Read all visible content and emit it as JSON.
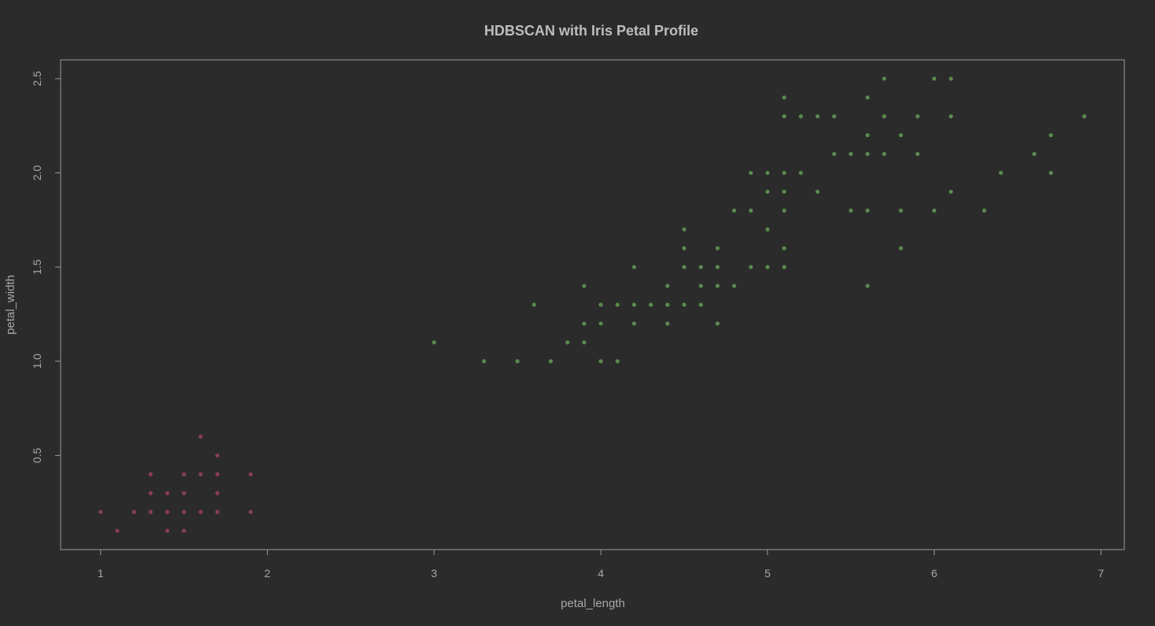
{
  "chart_data": {
    "type": "scatter",
    "title": "HDBSCAN with Iris Petal Profile",
    "xlabel": "petal_length",
    "ylabel": "petal_width",
    "xlim": [
      0.76,
      7.14
    ],
    "ylim": [
      0.0,
      2.6
    ],
    "xticks": [
      "1",
      "2",
      "3",
      "4",
      "5",
      "6",
      "7"
    ],
    "yticks": [
      "0.5",
      "1.0",
      "1.5",
      "2.0",
      "2.5"
    ],
    "grid": false,
    "legend": "none",
    "series": [
      {
        "color": "#8b3d55",
        "points": [
          [
            1.0,
            0.2
          ],
          [
            1.1,
            0.1
          ],
          [
            1.2,
            0.2
          ],
          [
            1.3,
            0.2
          ],
          [
            1.3,
            0.3
          ],
          [
            1.3,
            0.4
          ],
          [
            1.4,
            0.1
          ],
          [
            1.4,
            0.2
          ],
          [
            1.4,
            0.3
          ],
          [
            1.5,
            0.1
          ],
          [
            1.5,
            0.2
          ],
          [
            1.5,
            0.3
          ],
          [
            1.5,
            0.4
          ],
          [
            1.6,
            0.2
          ],
          [
            1.6,
            0.4
          ],
          [
            1.6,
            0.6
          ],
          [
            1.7,
            0.2
          ],
          [
            1.7,
            0.3
          ],
          [
            1.7,
            0.4
          ],
          [
            1.7,
            0.5
          ],
          [
            1.9,
            0.2
          ],
          [
            1.9,
            0.4
          ]
        ]
      },
      {
        "color": "#5a8a4f",
        "points": [
          [
            3.0,
            1.1
          ],
          [
            3.3,
            1.0
          ],
          [
            3.5,
            1.0
          ],
          [
            3.6,
            1.3
          ],
          [
            3.7,
            1.0
          ],
          [
            3.8,
            1.1
          ],
          [
            3.9,
            1.1
          ],
          [
            3.9,
            1.2
          ],
          [
            3.9,
            1.4
          ],
          [
            4.0,
            1.0
          ],
          [
            4.0,
            1.2
          ],
          [
            4.0,
            1.3
          ],
          [
            4.1,
            1.0
          ],
          [
            4.1,
            1.3
          ],
          [
            4.2,
            1.2
          ],
          [
            4.2,
            1.3
          ],
          [
            4.2,
            1.5
          ],
          [
            4.3,
            1.3
          ],
          [
            4.4,
            1.2
          ],
          [
            4.4,
            1.3
          ],
          [
            4.4,
            1.4
          ],
          [
            4.5,
            1.3
          ],
          [
            4.5,
            1.5
          ],
          [
            4.5,
            1.6
          ],
          [
            4.5,
            1.7
          ],
          [
            4.6,
            1.3
          ],
          [
            4.6,
            1.4
          ],
          [
            4.6,
            1.5
          ],
          [
            4.7,
            1.2
          ],
          [
            4.7,
            1.4
          ],
          [
            4.7,
            1.5
          ],
          [
            4.7,
            1.6
          ],
          [
            4.8,
            1.4
          ],
          [
            4.8,
            1.8
          ],
          [
            4.9,
            1.5
          ],
          [
            4.9,
            1.8
          ],
          [
            4.9,
            2.0
          ],
          [
            5.0,
            1.5
          ],
          [
            5.0,
            1.7
          ],
          [
            5.0,
            1.9
          ],
          [
            5.0,
            2.0
          ],
          [
            5.1,
            1.5
          ],
          [
            5.1,
            1.6
          ],
          [
            5.1,
            1.8
          ],
          [
            5.1,
            1.9
          ],
          [
            5.1,
            2.0
          ],
          [
            5.1,
            2.3
          ],
          [
            5.1,
            2.4
          ],
          [
            5.2,
            2.0
          ],
          [
            5.2,
            2.3
          ],
          [
            5.3,
            1.9
          ],
          [
            5.3,
            2.3
          ],
          [
            5.4,
            2.1
          ],
          [
            5.4,
            2.3
          ],
          [
            5.5,
            1.8
          ],
          [
            5.5,
            2.1
          ],
          [
            5.6,
            1.4
          ],
          [
            5.6,
            1.8
          ],
          [
            5.6,
            2.1
          ],
          [
            5.6,
            2.2
          ],
          [
            5.6,
            2.4
          ],
          [
            5.7,
            2.1
          ],
          [
            5.7,
            2.3
          ],
          [
            5.7,
            2.5
          ],
          [
            5.8,
            1.6
          ],
          [
            5.8,
            1.8
          ],
          [
            5.8,
            2.2
          ],
          [
            5.9,
            2.1
          ],
          [
            5.9,
            2.3
          ],
          [
            6.0,
            1.8
          ],
          [
            6.0,
            2.5
          ],
          [
            6.1,
            1.9
          ],
          [
            6.1,
            2.3
          ],
          [
            6.1,
            2.5
          ],
          [
            6.3,
            1.8
          ],
          [
            6.4,
            2.0
          ],
          [
            6.6,
            2.1
          ],
          [
            6.7,
            2.0
          ],
          [
            6.7,
            2.2
          ],
          [
            6.9,
            2.3
          ]
        ]
      }
    ]
  }
}
